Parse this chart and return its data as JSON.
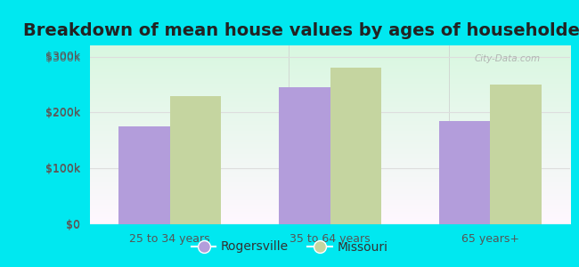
{
  "title": "Breakdown of mean house values by ages of householders",
  "categories": [
    "25 to 34 years",
    "35 to 64 years",
    "65 years+"
  ],
  "rogersville_values": [
    175000,
    245000,
    185000
  ],
  "missouri_values": [
    230000,
    280000,
    250000
  ],
  "rogersville_color": "#b39ddb",
  "missouri_color": "#c5d5a0",
  "bar_width": 0.32,
  "ylim": [
    0,
    320000
  ],
  "yticks": [
    0,
    100000,
    200000,
    300000
  ],
  "ytick_labels": [
    "$0",
    "$100k",
    "$200k",
    "$300k"
  ],
  "background_outer": "#00e8f0",
  "grid_color": "#dddddd",
  "legend_labels": [
    "Rogersville",
    "Missouri"
  ],
  "title_fontsize": 14,
  "tick_fontsize": 9,
  "legend_fontsize": 10,
  "watermark_text": "City-Data.com"
}
